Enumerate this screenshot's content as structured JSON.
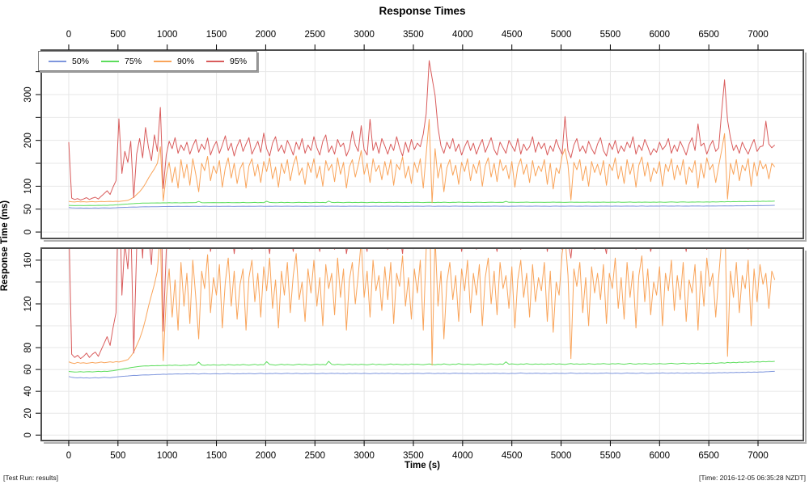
{
  "title": "Response Times",
  "footer": {
    "left": "[Test Run: results]",
    "right": "[Time: 2016-12-05 06:35:28 NZDT]"
  },
  "chart_data": {
    "type": "line",
    "title": "Response Times",
    "xlabel": "Time (s)",
    "ylabel": "Response Time (ms)",
    "legend_position": "top-left",
    "grid": true,
    "colors": {
      "grid": "#e7e7e7",
      "frame": "#4e4e4e",
      "shadow": "#b0b0b0",
      "axis": "#000000"
    },
    "xlim": [
      -279,
      7460
    ],
    "xticks": [
      0,
      500,
      1000,
      1500,
      2000,
      2500,
      3000,
      3500,
      4000,
      4500,
      5000,
      5500,
      6000,
      6500,
      7000
    ],
    "x_start": 0,
    "x_step": 30,
    "panels": [
      {
        "name": "full-range-panel",
        "ylim": [
          -14,
          397
        ],
        "yticks": [
          0,
          50,
          100,
          150,
          200,
          250,
          300,
          350
        ],
        "ylabels": [
          "0",
          "50",
          "100",
          "",
          "200",
          "",
          "300",
          ""
        ]
      },
      {
        "name": "zoomed-panel",
        "ylim": [
          -5,
          171
        ],
        "yticks": [
          0,
          20,
          40,
          60,
          80,
          100,
          120,
          140,
          160
        ],
        "ylabels": [
          "0",
          "20",
          "40",
          "60",
          "80",
          "",
          "120",
          "",
          "160"
        ]
      }
    ],
    "series": [
      {
        "name": "50%",
        "color": "#7e96dd",
        "values": [
          53.6,
          52.9,
          52.5,
          52.3,
          52.6,
          52.2,
          52.4,
          52.1,
          52.3,
          52.6,
          52.2,
          52.5,
          52.8,
          52.6,
          52.4,
          52.9,
          53.1,
          53.4,
          53.7,
          53.9,
          54.1,
          54.4,
          54.6,
          54.5,
          54.8,
          55.0,
          55.1,
          55.0,
          55.2,
          55.3,
          55.4,
          55.5,
          55.7,
          55.6,
          55.8,
          55.7,
          55.9,
          56.0,
          55.8,
          55.9,
          56.1,
          55.9,
          56.2,
          56.0,
          55.8,
          56.1,
          56.3,
          56.0,
          55.9,
          56.1,
          56.2,
          55.9,
          56.0,
          56.2,
          56.4,
          56.1,
          55.9,
          56.2,
          56.0,
          56.3,
          56.1,
          56.4,
          56.2,
          56.0,
          56.3,
          56.5,
          56.2,
          56.1,
          56.4,
          56.2,
          56.5,
          56.3,
          56.1,
          56.4,
          56.6,
          56.3,
          56.2,
          56.5,
          56.3,
          56.1,
          56.4,
          56.2,
          56.6,
          56.4,
          56.1,
          56.3,
          56.5,
          56.2,
          56.4,
          56.6,
          56.3,
          56.5,
          56.2,
          56.4,
          56.1,
          56.5,
          56.3,
          56.6,
          56.4,
          56.2,
          56.5,
          56.3,
          56.1,
          56.4,
          56.6,
          56.2,
          56.5,
          56.3,
          56.6,
          56.4,
          56.2,
          56.5,
          56.3,
          56.1,
          56.4,
          56.2,
          56.6,
          56.3,
          56.5,
          56.4,
          56.2,
          56.5,
          56.7,
          56.4,
          56.2,
          56.5,
          56.3,
          56.6,
          56.4,
          56.2,
          56.5,
          56.7,
          56.4,
          56.6,
          56.3,
          56.5,
          56.2,
          56.4,
          56.6,
          56.3,
          56.5,
          56.3,
          56.6,
          56.4,
          56.7,
          56.5,
          56.3,
          56.6,
          56.4,
          56.2,
          56.5,
          56.3,
          56.6,
          56.8,
          56.5,
          56.3,
          56.6,
          56.4,
          56.7,
          56.5,
          56.3,
          56.6,
          56.4,
          56.2,
          56.5,
          56.7,
          56.4,
          56.6,
          56.3,
          56.5,
          56.8,
          56.5,
          56.3,
          56.6,
          56.4,
          56.7,
          56.5,
          56.3,
          56.6,
          56.4,
          56.7,
          56.5,
          56.8,
          56.6,
          56.4,
          56.7,
          56.5,
          56.3,
          56.6,
          56.8,
          56.5,
          56.7,
          56.4,
          56.6,
          56.9,
          56.6,
          56.4,
          56.7,
          56.5,
          56.8,
          56.6,
          56.9,
          56.7,
          56.5,
          56.8,
          56.6,
          57.0,
          56.7,
          56.5,
          56.8,
          56.6,
          56.9,
          56.7,
          57.0,
          56.8,
          56.6,
          56.9,
          56.7,
          57.0,
          56.8,
          57.1,
          56.9,
          57.2,
          57.0,
          57.3,
          57.1,
          57.4,
          57.2,
          57.5,
          57.3,
          57.6,
          57.4,
          57.7,
          57.5,
          57.8,
          57.6,
          57.9,
          58.0,
          58.2,
          58.3
        ]
      },
      {
        "name": "75%",
        "color": "#5cdd5c",
        "values": [
          58.2,
          57.9,
          57.6,
          57.8,
          58.0,
          57.7,
          57.9,
          58.1,
          57.8,
          58.0,
          58.3,
          58.1,
          58.4,
          58.2,
          58.6,
          58.9,
          59.3,
          59.8,
          60.3,
          60.8,
          61.2,
          61.7,
          62.1,
          62.5,
          62.8,
          63.1,
          63.3,
          63.2,
          63.5,
          63.4,
          63.6,
          63.5,
          63.8,
          63.6,
          64.0,
          63.7,
          64.1,
          63.8,
          63.6,
          64.0,
          63.8,
          64.2,
          63.9,
          64.3,
          66.8,
          64.1,
          63.8,
          64.2,
          64.0,
          64.4,
          64.1,
          63.9,
          64.3,
          64.0,
          64.5,
          64.2,
          63.9,
          64.3,
          64.1,
          64.6,
          64.2,
          64.0,
          64.4,
          64.7,
          64.1,
          64.5,
          64.2,
          67.2,
          64.6,
          64.3,
          64.0,
          64.4,
          64.8,
          64.2,
          64.6,
          64.3,
          64.1,
          64.5,
          64.9,
          64.3,
          64.7,
          64.4,
          64.1,
          64.5,
          64.8,
          64.3,
          64.6,
          64.2,
          67.5,
          64.7,
          64.4,
          64.8,
          64.5,
          64.2,
          64.6,
          64.9,
          64.4,
          64.7,
          64.3,
          64.8,
          64.5,
          64.2,
          64.6,
          65.0,
          64.4,
          64.8,
          64.5,
          64.3,
          64.7,
          65.1,
          64.5,
          64.9,
          64.6,
          64.3,
          64.7,
          64.4,
          65.0,
          64.6,
          64.9,
          64.5,
          64.3,
          64.7,
          65.1,
          64.6,
          64.4,
          64.8,
          64.5,
          65.2,
          64.7,
          64.4,
          64.9,
          64.6,
          65.3,
          64.8,
          64.5,
          64.9,
          64.6,
          64.4,
          64.8,
          65.1,
          64.7,
          64.5,
          64.9,
          65.2,
          64.8,
          64.6,
          65.0,
          64.7,
          67.0,
          64.8,
          65.2,
          64.9,
          64.6,
          65.0,
          64.8,
          65.3,
          64.9,
          64.7,
          65.1,
          64.8,
          65.0,
          64.7,
          65.1,
          64.9,
          65.3,
          64.8,
          65.2,
          64.9,
          64.6,
          65.0,
          65.4,
          64.9,
          65.2,
          64.8,
          65.1,
          64.9,
          65.3,
          65.0,
          64.8,
          65.2,
          65.0,
          65.4,
          65.1,
          64.9,
          65.3,
          65.0,
          65.5,
          65.1,
          64.8,
          65.2,
          65.6,
          65.1,
          64.9,
          65.3,
          65.0,
          65.4,
          65.2,
          64.9,
          65.3,
          65.1,
          65.5,
          65.2,
          65.0,
          65.4,
          65.7,
          65.3,
          65.1,
          65.5,
          65.8,
          65.4,
          65.2,
          65.6,
          65.3,
          65.9,
          65.5,
          65.3,
          65.7,
          65.4,
          66.0,
          65.6,
          65.9,
          66.2,
          65.8,
          66.4,
          66.1,
          66.5,
          66.2,
          66.7,
          66.4,
          66.8,
          66.5,
          67.0,
          66.7,
          67.1,
          66.8,
          67.3,
          67.0,
          67.4,
          67.2,
          67.5
        ]
      },
      {
        "name": "90%",
        "color": "#f9a45a",
        "values": [
          67,
          66,
          65.5,
          66.5,
          65.8,
          66.2,
          65.6,
          66,
          66.4,
          65.9,
          66.3,
          66.8,
          66.2,
          66.6,
          67,
          66.5,
          67.2,
          66.8,
          67.5,
          68.2,
          69,
          72,
          76,
          82,
          88,
          96,
          106,
          118,
          128,
          138,
          150,
          186,
          68,
          125,
          152,
          108,
          142,
          96,
          158,
          118,
          148,
          102,
          160,
          126,
          88,
          150,
          134,
          165,
          112,
          144,
          128,
          156,
          98,
          140,
          162,
          118,
          150,
          106,
          138,
          152,
          96,
          144,
          160,
          122,
          148,
          108,
          154,
          132,
          162,
          116,
          142,
          98,
          150,
          128,
          158,
          112,
          146,
          166,
          124,
          140,
          104,
          152,
          130,
          160,
          118,
          144,
          100,
          156,
          134,
          148,
          110,
          162,
          126,
          152,
          96,
          142,
          158,
          120,
          146,
          178,
          126,
          150,
          108,
          160,
          132,
          146,
          114,
          154,
          124,
          158,
          102,
          148,
          136,
          164,
          118,
          144,
          106,
          152,
          130,
          160,
          96,
          170,
          246,
          64,
          182,
          118,
          150,
          88,
          140,
          158,
          124,
          146,
          104,
          152,
          132,
          160,
          112,
          148,
          128,
          156,
          100,
          144,
          162,
          120,
          150,
          110,
          158,
          134,
          146,
          116,
          154,
          98,
          142,
          160,
          126,
          148,
          108,
          156,
          122,
          144,
          132,
          158,
          104,
          150,
          94,
          140,
          128,
          166,
          182,
          146,
          70,
          152,
          136,
          158,
          112,
          144,
          100,
          154,
          130,
          148,
          124,
          156,
          102,
          148,
          134,
          162,
          116,
          144,
          106,
          158,
          126,
          150,
          98,
          146,
          164,
          122,
          152,
          110,
          140,
          128,
          154,
          100,
          148,
          132,
          160,
          114,
          146,
          124,
          158,
          104,
          142,
          130,
          156,
          96,
          150,
          118,
          162,
          136,
          148,
          108,
          144,
          178,
          215,
          72,
          150,
          126,
          158,
          112,
          146,
          134,
          160,
          100,
          152,
          122,
          156,
          138,
          148,
          116,
          150,
          142
        ]
      },
      {
        "name": "95%",
        "color": "#d95c5c",
        "values": [
          196,
          74,
          71,
          73,
          70,
          72,
          75,
          71,
          74,
          76,
          72,
          78,
          84,
          90,
          82,
          98,
          112,
          247,
          128,
          176,
          152,
          198,
          75,
          170,
          204,
          162,
          228,
          184,
          156,
          212,
          176,
          272,
          95,
          168,
          198,
          182,
          206,
          172,
          190,
          178,
          196,
          170,
          188,
          202,
          174,
          192,
          180,
          205,
          168,
          186,
          198,
          172,
          190,
          210,
          178,
          194,
          166,
          188,
          202,
          176,
          192,
          206,
          170,
          184,
          198,
          174,
          216,
          182,
          166,
          194,
          208,
          176,
          190,
          172,
          200,
          186,
          168,
          196,
          180,
          204,
          172,
          190,
          178,
          208,
          184,
          168,
          198,
          212,
          174,
          188,
          170,
          202,
          186,
          194,
          166,
          182,
          220,
          190,
          176,
          232,
          180,
          168,
          246,
          178,
          196,
          172,
          204,
          188,
          170,
          192,
          178,
          208,
          184,
          166,
          196,
          174,
          202,
          180,
          194,
          186,
          214,
          258,
          374,
          336,
          298,
          228,
          188,
          172,
          196,
          182,
          204,
          176,
          192,
          168,
          186,
          200,
          178,
          194,
          170,
          188,
          202,
          174,
          190,
          206,
          180,
          168,
          196,
          184,
          172,
          200,
          188,
          176,
          204,
          170,
          192,
          178,
          186,
          208,
          174,
          196,
          182,
          194,
          168,
          188,
          176,
          202,
          184,
          170,
          252,
          178,
          162,
          190,
          204,
          176,
          188,
          172,
          198,
          182,
          170,
          192,
          206,
          178,
          166,
          194,
          180,
          200,
          172,
          188,
          176,
          196,
          184,
          208,
          170,
          190,
          178,
          202,
          186,
          168,
          182,
          174,
          196,
          180,
          188,
          204,
          172,
          190,
          176,
          198,
          184,
          168,
          192,
          206,
          178,
          236,
          188,
          194,
          170,
          188,
          200,
          176,
          184,
          262,
          332,
          244,
          206,
          178,
          190,
          172,
          196,
          182,
          170,
          188,
          202,
          176,
          186,
          188,
          242,
          192,
          184,
          190
        ]
      }
    ]
  }
}
